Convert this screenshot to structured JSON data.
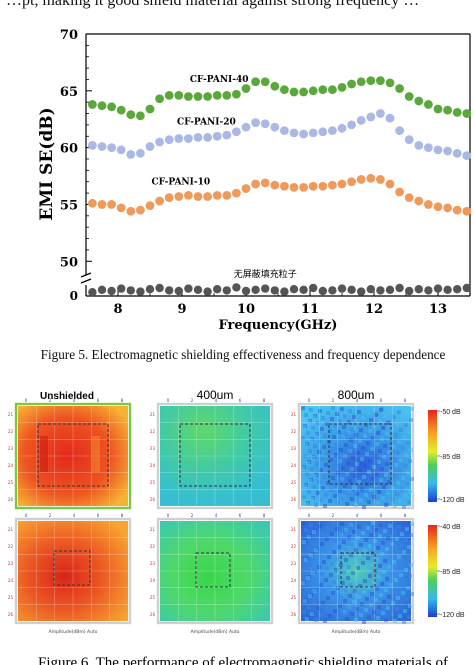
{
  "page": {
    "top_fragment": "…pt, making it good shield material against strong frequency …",
    "figure5_caption": "Figure 5. Electromagnetic shielding effectiveness and frequency dependence",
    "bottom_fragment": "Figure 6. The performance of electromagnetic shielding materials of ..."
  },
  "chart_data": {
    "type": "scatter",
    "ylabel": "EMI SE(dB)",
    "xlabel": "Frequency(GHz)",
    "xlim": [
      7.5,
      13.5
    ],
    "ylim": [
      48,
      70
    ],
    "xticks": [
      "8",
      "9",
      "10",
      "11",
      "12",
      "13"
    ],
    "yticks": [
      "50",
      "55",
      "60",
      "65",
      "70"
    ],
    "ybreak_label": "0",
    "grid": false,
    "x": [
      7.6,
      7.75,
      7.9,
      8.05,
      8.2,
      8.35,
      8.5,
      8.65,
      8.8,
      8.95,
      9.1,
      9.25,
      9.4,
      9.55,
      9.7,
      9.85,
      10.0,
      10.15,
      10.3,
      10.45,
      10.6,
      10.75,
      10.9,
      11.05,
      11.2,
      11.35,
      11.5,
      11.65,
      11.8,
      11.95,
      12.1,
      12.25,
      12.4,
      12.55,
      12.7,
      12.85,
      13.0,
      13.15,
      13.3,
      13.45
    ],
    "series": [
      {
        "name": "CF-PANI-40",
        "color": "#5aa83c",
        "values": [
          63.8,
          63.7,
          63.6,
          63.3,
          62.9,
          62.8,
          63.4,
          64.3,
          64.6,
          64.6,
          64.5,
          64.5,
          64.5,
          64.6,
          64.6,
          64.7,
          65.2,
          65.8,
          65.8,
          65.4,
          65.1,
          64.9,
          64.9,
          65.0,
          65.1,
          65.1,
          65.3,
          65.6,
          65.8,
          65.9,
          65.9,
          65.7,
          65.2,
          64.5,
          64.1,
          63.8,
          63.4,
          63.3,
          63.1,
          63.0
        ]
      },
      {
        "name": "CF-PANI-20",
        "color": "#aab8e4",
        "values": [
          60.2,
          60.1,
          60.0,
          59.8,
          59.4,
          59.5,
          60.1,
          60.5,
          60.7,
          60.8,
          60.8,
          60.9,
          60.9,
          61.0,
          61.1,
          61.4,
          61.8,
          62.2,
          62.1,
          61.8,
          61.5,
          61.3,
          61.2,
          61.3,
          61.4,
          61.5,
          61.7,
          62.0,
          62.4,
          62.7,
          63.0,
          62.6,
          61.5,
          60.7,
          60.2,
          60.0,
          59.8,
          59.7,
          59.5,
          59.3
        ]
      },
      {
        "name": "CF-PANI-10",
        "color": "#ef9a5a",
        "values": [
          55.1,
          55.0,
          55.0,
          54.7,
          54.4,
          54.5,
          54.9,
          55.3,
          55.6,
          55.7,
          55.8,
          55.7,
          55.7,
          55.8,
          55.8,
          56.0,
          56.4,
          56.8,
          56.9,
          56.7,
          56.6,
          56.5,
          56.5,
          56.6,
          56.6,
          56.7,
          56.8,
          57.0,
          57.2,
          57.3,
          57.2,
          56.8,
          56.1,
          55.6,
          55.3,
          55.0,
          54.8,
          54.7,
          54.5,
          54.4
        ]
      }
    ],
    "baseline_series": {
      "name": "无屏蔽填充粒子",
      "color": "#555555",
      "values": [
        0.3,
        0.7,
        0.5,
        0.9,
        0.6,
        0.4,
        0.8,
        1.0,
        0.6,
        0.5,
        0.9,
        0.7,
        0.4,
        0.8,
        0.6,
        1.1,
        0.5,
        0.7,
        0.9,
        0.6,
        0.4,
        0.8,
        0.7,
        1.0,
        0.5,
        0.6,
        0.9,
        0.7,
        0.4,
        0.8,
        0.6,
        0.7,
        1.0,
        0.5,
        0.8,
        0.6,
        0.9,
        0.7,
        0.8,
        1.0
      ]
    }
  },
  "heatmaps": {
    "columns": [
      {
        "title": "Unshielded"
      },
      {
        "title": "400um"
      },
      {
        "title": "800um"
      }
    ],
    "axis_caption": "Amplitude(dBm)  Auto",
    "ticks_top": [
      "0",
      "2",
      "4",
      "6",
      "8"
    ],
    "ticks_left": [
      "21",
      "22",
      "23",
      "24",
      "25",
      "26"
    ],
    "colorbars": [
      {
        "labels": [
          "-50 dB",
          "-85 dB",
          "-120 dB"
        ]
      },
      {
        "labels": [
          "-40 dB",
          "-85 dB",
          "-120 dB"
        ]
      }
    ]
  }
}
